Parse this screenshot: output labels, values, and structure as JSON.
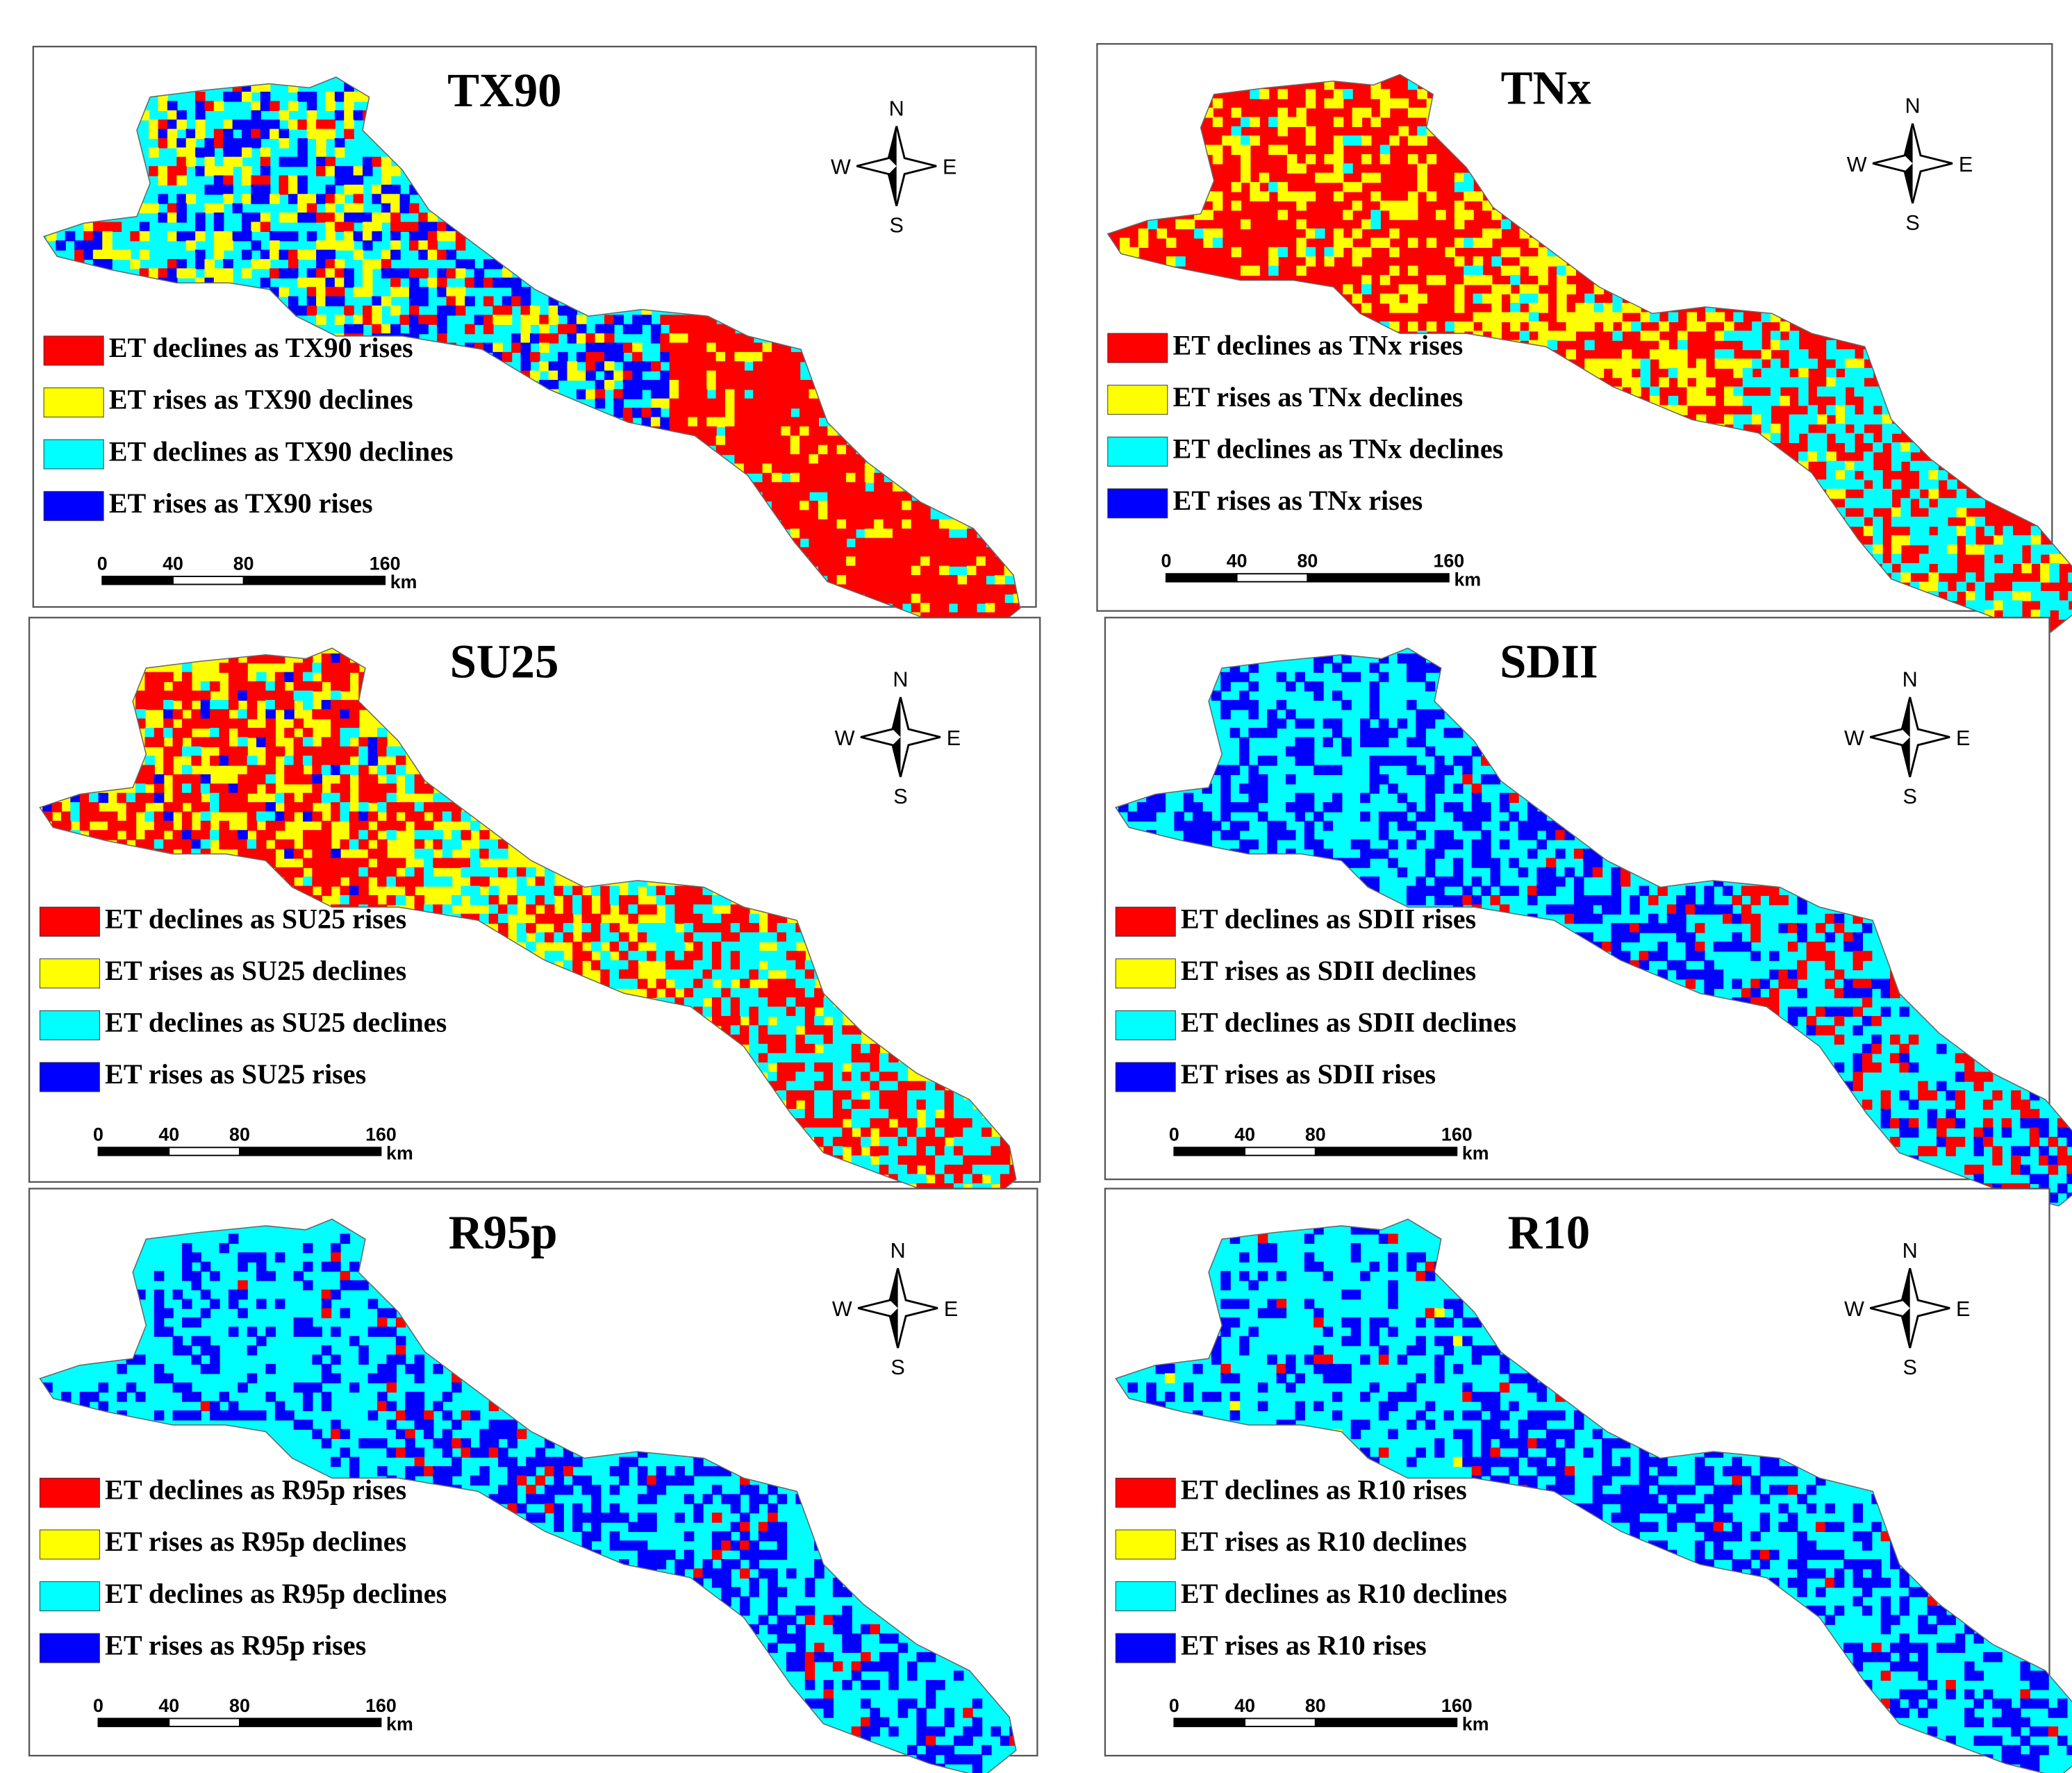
{
  "panels": [
    {
      "title": "TX90",
      "legend": [
        {
          "label": "ET declines as TX90 rises",
          "color": "#ff0000"
        },
        {
          "label": "ET rises as TX90 declines",
          "color": "#ffff00"
        },
        {
          "label": "ET declines as TX90 declines",
          "color": "#00ffff"
        },
        {
          "label": "ET rises as TX90 rises",
          "color": "#0000ff"
        }
      ],
      "compass": [
        "N",
        "W",
        "E",
        "S"
      ],
      "scale": {
        "ticks": [
          0,
          40,
          80,
          160
        ],
        "unit": "km"
      }
    },
    {
      "title": "TNx",
      "legend": [
        {
          "label": "ET declines as TNx rises",
          "color": "#ff0000"
        },
        {
          "label": "ET rises as TNx declines",
          "color": "#ffff00"
        },
        {
          "label": "ET declines as TNx declines",
          "color": "#00ffff"
        },
        {
          "label": "ET rises as TNx rises",
          "color": "#0000ff"
        }
      ],
      "compass": [
        "N",
        "W",
        "E",
        "S"
      ],
      "scale": {
        "ticks": [
          0,
          40,
          80,
          160
        ],
        "unit": "km"
      }
    },
    {
      "title": "SU25",
      "legend": [
        {
          "label": "ET declines as SU25 rises",
          "color": "#ff0000"
        },
        {
          "label": "ET rises as SU25 declines",
          "color": "#ffff00"
        },
        {
          "label": "ET declines as SU25 declines",
          "color": "#00ffff"
        },
        {
          "label": "ET rises as SU25 rises",
          "color": "#0000ff"
        }
      ],
      "compass": [
        "N",
        "W",
        "E",
        "S"
      ],
      "scale": {
        "ticks": [
          0,
          40,
          80,
          160
        ],
        "unit": "km"
      }
    },
    {
      "title": "SDII",
      "legend": [
        {
          "label": "ET declines as SDII rises",
          "color": "#ff0000"
        },
        {
          "label": "ET rises as SDII declines",
          "color": "#ffff00"
        },
        {
          "label": "ET declines as SDII declines",
          "color": "#00ffff"
        },
        {
          "label": "ET rises as SDII rises",
          "color": "#0000ff"
        }
      ],
      "compass": [
        "N",
        "W",
        "E",
        "S"
      ],
      "scale": {
        "ticks": [
          0,
          40,
          80,
          160
        ],
        "unit": "km"
      }
    },
    {
      "title": "R95p",
      "legend": [
        {
          "label": "ET declines as R95p rises",
          "color": "#ff0000"
        },
        {
          "label": "ET rises as R95p declines",
          "color": "#ffff00"
        },
        {
          "label": "ET declines as R95p declines",
          "color": "#00ffff"
        },
        {
          "label": "ET rises as R95p rises",
          "color": "#0000ff"
        }
      ],
      "compass": [
        "N",
        "W",
        "E",
        "S"
      ],
      "scale": {
        "ticks": [
          0,
          40,
          80,
          160
        ],
        "unit": "km"
      }
    },
    {
      "title": "R10",
      "legend": [
        {
          "label": "ET declines as R10 rises",
          "color": "#ff0000"
        },
        {
          "label": "ET rises as R10 declines",
          "color": "#ffff00"
        },
        {
          "label": "ET declines as R10 declines",
          "color": "#00ffff"
        },
        {
          "label": "ET rises as R10 rises",
          "color": "#0000ff"
        }
      ],
      "compass": [
        "N",
        "W",
        "E",
        "S"
      ],
      "scale": {
        "ticks": [
          0,
          40,
          80,
          160
        ],
        "unit": "km"
      }
    }
  ]
}
